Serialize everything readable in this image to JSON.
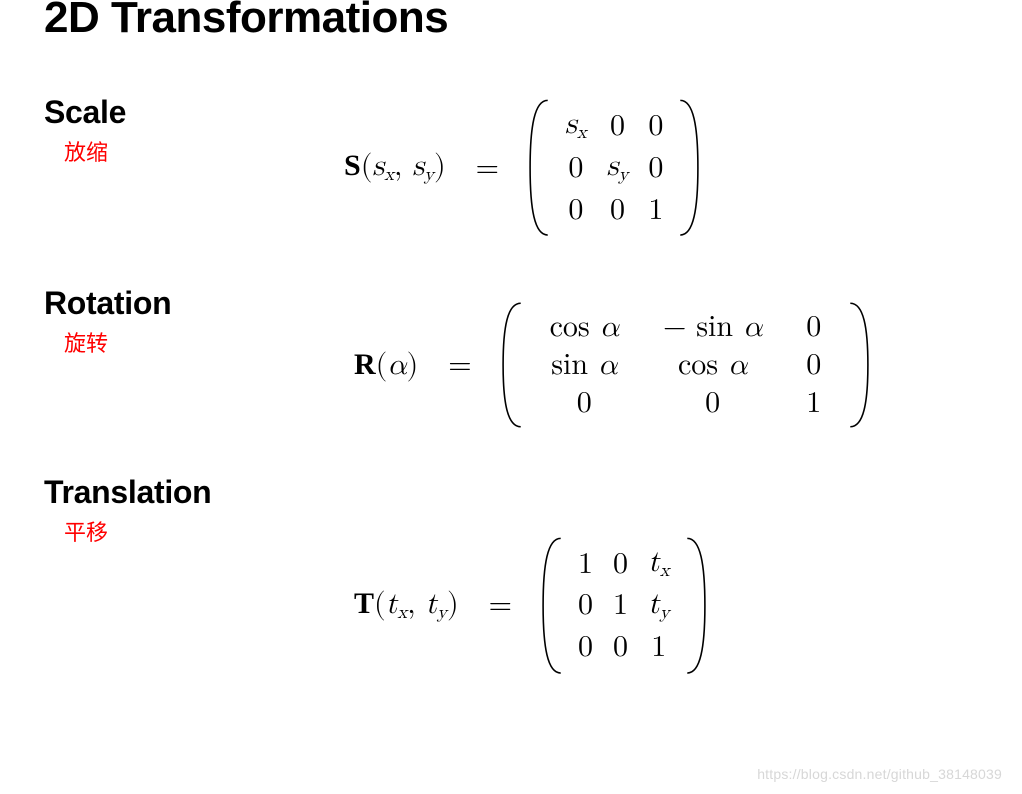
{
  "title": "2D Transformations",
  "colors": {
    "text": "#000000",
    "annotation": "#ff0000",
    "background": "#ffffff",
    "watermark": "#d7d7d7",
    "divider": "#b0b0b0"
  },
  "typography": {
    "title_fontsize": 44,
    "title_weight": 800,
    "section_title_fontsize": 32,
    "section_title_weight": 700,
    "annotation_fontsize": 22,
    "formula_fontsize": 30,
    "formula_family": "serif"
  },
  "sections": [
    {
      "key": "scale",
      "title": "Scale",
      "annotation": "放缩",
      "fn_symbol": "S",
      "args_html": "<span class='it'>s</span><span class='sub'>x</span>, <span class='it'>s</span><span class='sub'>y</span>",
      "matrix": {
        "rows": 3,
        "cols": 3,
        "col_gap": "tight",
        "cells_html": [
          [
            "<span class='it'>s</span><span class='sub'>x</span>",
            "0",
            "0"
          ],
          [
            "0",
            "<span class='it'>s</span><span class='sub'>y</span>",
            "0"
          ],
          [
            "0",
            "0",
            "1"
          ]
        ]
      }
    },
    {
      "key": "rotation",
      "title": "Rotation",
      "annotation": "旋转",
      "fn_symbol": "R",
      "args_html": "<span class='it'>α</span>",
      "matrix": {
        "rows": 3,
        "cols": 3,
        "col_gap": "wide",
        "cells_html": [
          [
            "cos <span class='it'>α</span>",
            "− sin <span class='it'>α</span>",
            "0"
          ],
          [
            "sin <span class='it'>α</span>",
            "cos <span class='it'>α</span>",
            "0"
          ],
          [
            "0",
            "0",
            "1"
          ]
        ]
      }
    },
    {
      "key": "translation",
      "title": "Translation",
      "annotation": "平移",
      "fn_symbol": "T",
      "args_html": "<span class='it'>t</span><span class='sub'>x</span>, <span class='it'>t</span><span class='sub'>y</span>",
      "matrix": {
        "rows": 3,
        "cols": 3,
        "col_gap": "tight",
        "cells_html": [
          [
            "1",
            "0",
            "<span class='it'>t</span><span class='sub'>x</span>"
          ],
          [
            "0",
            "1",
            "<span class='it'>t</span><span class='sub'>y</span>"
          ],
          [
            "0",
            "0",
            "1"
          ]
        ]
      }
    }
  ],
  "watermark": "https://blog.csdn.net/github_38148039"
}
